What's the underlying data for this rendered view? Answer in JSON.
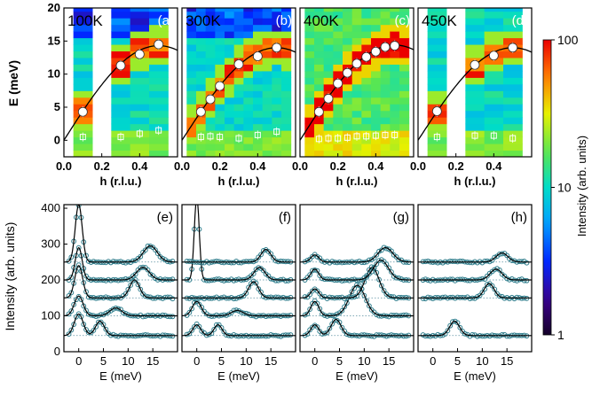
{
  "figure": {
    "colorbar": {
      "label": "Intensity (arb. units)",
      "tick_labels": [
        "100",
        "10",
        "1"
      ],
      "tick_values": [
        100,
        10,
        1
      ],
      "range": [
        1,
        100
      ],
      "scale": "log"
    },
    "top_ylabel": "E (meV)",
    "bottom_ylabel": "Intensity (arb. units)",
    "top_xlabel": "h (r.l.u.)",
    "bottom_xlabel": "E (meV)"
  },
  "chart_data": [
    {
      "type": "heatmap",
      "panel_label": "(a)",
      "temperature": "100K",
      "xlabel": "h (r.l.u.)",
      "ylabel": "E (meV)",
      "xlim": [
        0,
        0.6
      ],
      "ylim": [
        -2.5,
        20
      ],
      "x_ticks": [
        "0.0",
        "0.2",
        "0.4"
      ],
      "y_ticks": [
        "0",
        "5",
        "10",
        "15",
        "20"
      ],
      "circles": [
        [
          0.1,
          4.3
        ],
        [
          0.3,
          11.3
        ],
        [
          0.4,
          13.0
        ],
        [
          0.5,
          14.5
        ]
      ],
      "squares": [
        [
          0.1,
          0.5
        ],
        [
          0.3,
          0.5
        ],
        [
          0.4,
          1.0
        ],
        [
          0.5,
          1.5
        ]
      ],
      "curve_max": 14.3,
      "data_columns": [
        0.1,
        0.3,
        0.4,
        0.5
      ]
    },
    {
      "type": "heatmap",
      "panel_label": "(b)",
      "temperature": "300K",
      "xlabel": "h (r.l.u.)",
      "ylabel": "",
      "xlim": [
        0,
        0.6
      ],
      "ylim": [
        -2.5,
        20
      ],
      "x_ticks": [
        "0.0",
        "0.2",
        "0.4"
      ],
      "y_ticks": [],
      "circles": [
        [
          0.1,
          4.3
        ],
        [
          0.15,
          6.2
        ],
        [
          0.2,
          8.2
        ],
        [
          0.3,
          11.5
        ],
        [
          0.4,
          12.7
        ],
        [
          0.5,
          14.0
        ]
      ],
      "squares": [
        [
          0.1,
          0.5
        ],
        [
          0.15,
          0.6
        ],
        [
          0.2,
          0.5
        ],
        [
          0.3,
          0.3
        ],
        [
          0.4,
          0.8
        ],
        [
          0.5,
          1.3
        ]
      ],
      "curve_max": 14.0,
      "data_columns": [
        0.05,
        0.1,
        0.15,
        0.2,
        0.25,
        0.3,
        0.35,
        0.4,
        0.45,
        0.5,
        0.55
      ]
    },
    {
      "type": "heatmap",
      "panel_label": "(c)",
      "temperature": "400K",
      "xlabel": "h (r.l.u.)",
      "ylabel": "",
      "xlim": [
        0,
        0.6
      ],
      "ylim": [
        -2.5,
        20
      ],
      "x_ticks": [
        "0.0",
        "0.2",
        "0.4"
      ],
      "y_ticks": [],
      "circles": [
        [
          0.1,
          4.3
        ],
        [
          0.15,
          6.3
        ],
        [
          0.2,
          8.6
        ],
        [
          0.25,
          10.2
        ],
        [
          0.3,
          11.6
        ],
        [
          0.35,
          12.6
        ],
        [
          0.4,
          13.4
        ],
        [
          0.45,
          14.1
        ],
        [
          0.5,
          14.3
        ]
      ],
      "squares": [
        [
          0.1,
          0.2
        ],
        [
          0.15,
          0.3
        ],
        [
          0.2,
          0.3
        ],
        [
          0.25,
          0.4
        ],
        [
          0.3,
          0.6
        ],
        [
          0.35,
          0.6
        ],
        [
          0.4,
          0.7
        ],
        [
          0.45,
          0.8
        ],
        [
          0.5,
          0.8
        ]
      ],
      "curve_max": 14.4,
      "data_columns": [
        0.05,
        0.1,
        0.15,
        0.2,
        0.25,
        0.3,
        0.35,
        0.4,
        0.45,
        0.5,
        0.55
      ]
    },
    {
      "type": "heatmap",
      "panel_label": "(d)",
      "temperature": "450K",
      "xlabel": "h (r.l.u.)",
      "ylabel": "",
      "xlim": [
        0,
        0.6
      ],
      "ylim": [
        -2.5,
        20
      ],
      "x_ticks": [
        "0.0",
        "0.2",
        "0.4"
      ],
      "y_ticks": [],
      "circles": [
        [
          0.1,
          4.4
        ],
        [
          0.3,
          11.4
        ],
        [
          0.4,
          12.8
        ],
        [
          0.5,
          14.0
        ]
      ],
      "squares": [
        [
          0.1,
          0.5
        ],
        [
          0.3,
          0.7
        ],
        [
          0.4,
          0.7
        ],
        [
          0.5,
          0.3
        ]
      ],
      "curve_max": 14.0,
      "data_columns": [
        0.1,
        0.3,
        0.4,
        0.5
      ]
    },
    {
      "type": "line",
      "panel_label": "(e)",
      "xlabel": "E (meV)",
      "ylabel": "Intensity (arb. units)",
      "xlim": [
        -3,
        20
      ],
      "ylim": [
        0,
        410
      ],
      "x_ticks": [
        "0",
        "5",
        "10",
        "15"
      ],
      "y_ticks": [
        "0",
        "100",
        "200",
        "300",
        "400"
      ],
      "series": [
        {
          "baseline": 45,
          "peaks": [
            [
              0,
              60,
              0.9
            ],
            [
              4.3,
              40,
              0.9
            ]
          ]
        },
        {
          "baseline": 100,
          "peaks": [
            [
              0,
              55,
              0.9
            ],
            [
              7.5,
              22,
              1.2
            ]
          ]
        },
        {
          "baseline": 150,
          "peaks": [
            [
              0,
              90,
              0.8
            ],
            [
              11.3,
              50,
              1.0
            ]
          ]
        },
        {
          "baseline": 200,
          "peaks": [
            [
              0,
              90,
              0.7
            ],
            [
              13.0,
              35,
              1.3
            ]
          ]
        },
        {
          "baseline": 250,
          "peaks": [
            [
              0,
              160,
              0.7
            ],
            [
              14.5,
              45,
              1.4
            ]
          ]
        }
      ]
    },
    {
      "type": "line",
      "panel_label": "(f)",
      "xlabel": "E (meV)",
      "ylabel": "",
      "xlim": [
        -3,
        20
      ],
      "ylim": [
        0,
        410
      ],
      "x_ticks": [
        "0",
        "5",
        "10",
        "15"
      ],
      "y_ticks": [],
      "series": [
        {
          "baseline": 45,
          "peaks": [
            [
              0,
              30,
              0.8
            ],
            [
              4.3,
              30,
              0.8
            ]
          ]
        },
        {
          "baseline": 100,
          "peaks": [
            [
              0,
              40,
              0.9
            ],
            [
              8.2,
              15,
              1.2
            ]
          ]
        },
        {
          "baseline": 150,
          "peaks": [
            [
              11.5,
              45,
              1.0
            ]
          ]
        },
        {
          "baseline": 200,
          "peaks": [
            [
              0,
              230,
              0.5
            ],
            [
              12.7,
              35,
              1.1
            ]
          ]
        },
        {
          "baseline": 250,
          "peaks": [
            [
              14.0,
              35,
              1.0
            ]
          ]
        }
      ]
    },
    {
      "type": "line",
      "panel_label": "(g)",
      "xlabel": "E (meV)",
      "ylabel": "",
      "xlim": [
        -3,
        20
      ],
      "ylim": [
        0,
        410
      ],
      "x_ticks": [
        "0",
        "5",
        "10",
        "15"
      ],
      "y_ticks": [],
      "series": [
        {
          "baseline": 45,
          "peaks": [
            [
              0,
              30,
              0.8
            ],
            [
              4.3,
              45,
              1.0
            ]
          ]
        },
        {
          "baseline": 100,
          "peaks": [
            [
              0,
              40,
              0.8
            ],
            [
              8.6,
              85,
              1.6
            ]
          ]
        },
        {
          "baseline": 150,
          "peaks": [
            [
              0,
              25,
              0.8
            ],
            [
              11.6,
              85,
              1.4
            ]
          ]
        },
        {
          "baseline": 200,
          "peaks": [
            [
              0,
              30,
              0.8
            ],
            [
              13.4,
              55,
              1.5
            ]
          ]
        },
        {
          "baseline": 250,
          "peaks": [
            [
              0,
              20,
              0.8
            ],
            [
              14.3,
              40,
              1.5
            ]
          ]
        }
      ]
    },
    {
      "type": "line",
      "panel_label": "(h)",
      "xlabel": "E (meV)",
      "ylabel": "",
      "xlim": [
        -3,
        20
      ],
      "ylim": [
        0,
        410
      ],
      "x_ticks": [
        "0",
        "5",
        "10",
        "15"
      ],
      "y_ticks": [],
      "series": [
        {
          "baseline": 45,
          "peaks": [
            [
              4.4,
              40,
              1.0
            ]
          ]
        },
        {
          "baseline": 150,
          "peaks": [
            [
              11.4,
              40,
              1.0
            ]
          ]
        },
        {
          "baseline": 200,
          "peaks": [
            [
              12.8,
              30,
              1.2
            ]
          ]
        },
        {
          "baseline": 250,
          "peaks": [
            [
              14.0,
              25,
              1.2
            ]
          ]
        }
      ]
    }
  ]
}
